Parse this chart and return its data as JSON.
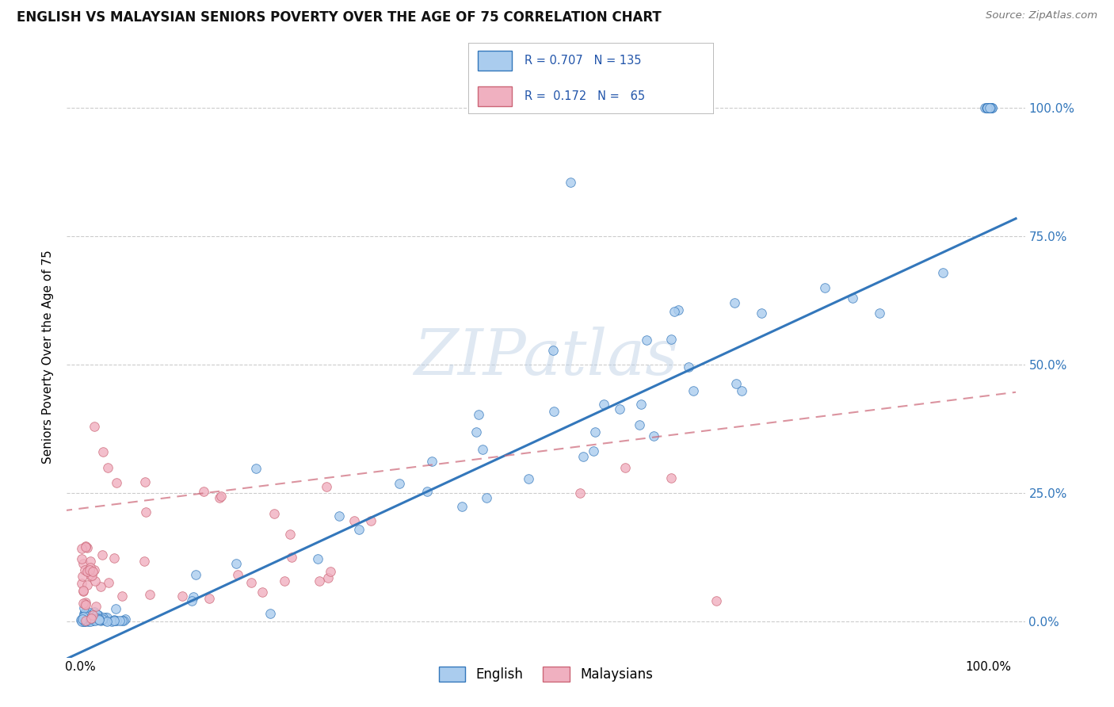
{
  "title": "ENGLISH VS MALAYSIAN SENIORS POVERTY OVER THE AGE OF 75 CORRELATION CHART",
  "source": "Source: ZipAtlas.com",
  "ylabel": "Seniors Poverty Over the Age of 75",
  "english_R": 0.707,
  "english_N": 135,
  "malaysian_R": 0.172,
  "malaysian_N": 65,
  "english_color": "#aaccee",
  "malaysian_color": "#f0b0c0",
  "english_line_color": "#3377bb",
  "malaysian_line_color": "#cc6677",
  "watermark_text": "ZIPatlas",
  "background_color": "#ffffff",
  "grid_color": "#cccccc",
  "legend_R_color": "#2255aa",
  "legend_N_color": "#22aa22",
  "right_tick_color": "#3377bb",
  "eng_line_slope": 0.82,
  "eng_line_intercept": -0.06,
  "mal_line_slope": 0.22,
  "mal_line_intercept": 0.22,
  "yticks": [
    0.0,
    0.25,
    0.5,
    0.75,
    1.0
  ],
  "ytick_labels": [
    "0.0%",
    "25.0%",
    "50.0%",
    "75.0%",
    "100.0%"
  ]
}
